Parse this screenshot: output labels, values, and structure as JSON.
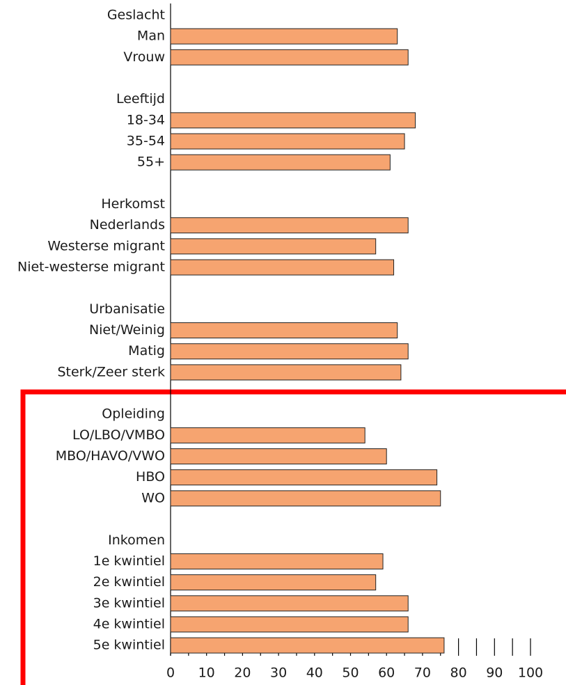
{
  "chart_data": {
    "type": "bar",
    "orientation": "horizontal",
    "color": "#f6a470",
    "groups": [
      {
        "name": "Geslacht",
        "categories": [
          "Man",
          "Vrouw"
        ],
        "values": [
          63,
          66
        ]
      },
      {
        "name": "Leeftijd",
        "categories": [
          "18-34",
          "35-54",
          "55+"
        ],
        "values": [
          68,
          65,
          61
        ]
      },
      {
        "name": "Herkomst",
        "categories": [
          "Nederlands",
          "Westerse migrant",
          "Niet-westerse migrant"
        ],
        "values": [
          66,
          57,
          62
        ]
      },
      {
        "name": "Urbanisatie",
        "categories": [
          "Niet/Weinig",
          "Matig",
          "Sterk/Zeer sterk"
        ],
        "values": [
          63,
          66,
          64
        ]
      },
      {
        "name": "Opleiding",
        "categories": [
          "LO/LBO/VMBO",
          "MBO/HAVO/VWO",
          "HBO",
          "WO"
        ],
        "values": [
          54,
          60,
          74,
          75
        ]
      },
      {
        "name": "Inkomen",
        "categories": [
          "1e kwintiel",
          "2e kwintiel",
          "3e kwintiel",
          "4e kwintiel",
          "5e kwintiel"
        ],
        "values": [
          59,
          57,
          66,
          66,
          76
        ]
      }
    ],
    "xlim": [
      0,
      100
    ],
    "xticks": [
      0,
      10,
      20,
      30,
      40,
      50,
      60,
      70,
      80,
      90,
      100
    ],
    "xminorticks": [
      5,
      15,
      25,
      35,
      45,
      55,
      65,
      75,
      85,
      95
    ]
  }
}
